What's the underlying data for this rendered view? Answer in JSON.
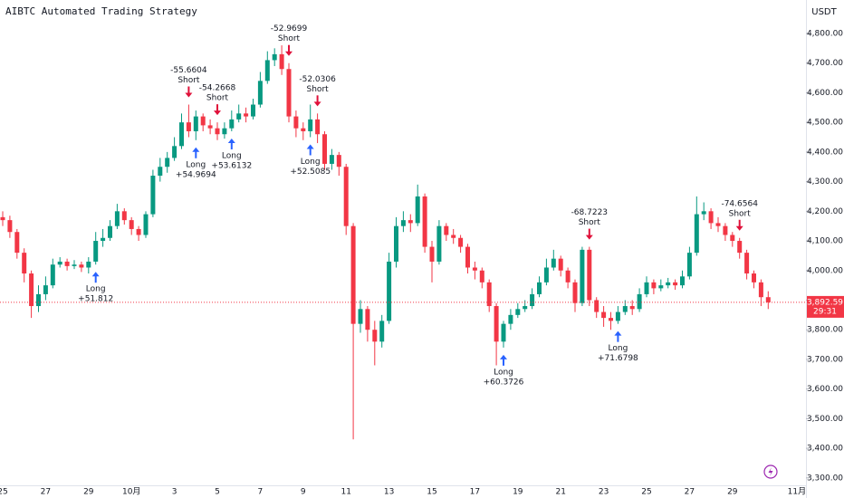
{
  "chart_data": {
    "type": "candlestick",
    "title": "AIBTC Automated Trading Strategy",
    "currency": "USDT",
    "categories": [
      "25",
      null,
      null,
      null,
      null,
      null,
      "27",
      null,
      null,
      null,
      null,
      null,
      "29",
      null,
      null,
      null,
      null,
      null,
      "10月",
      null,
      null,
      null,
      null,
      null,
      "3",
      null,
      null,
      null,
      null,
      null,
      "5",
      null,
      null,
      null,
      null,
      null,
      "7",
      null,
      null,
      null,
      null,
      null,
      "9",
      null,
      null,
      null,
      null,
      null,
      "11",
      null,
      null,
      null,
      null,
      null,
      "13",
      null,
      null,
      null,
      null,
      null,
      "15",
      null,
      null,
      null,
      null,
      null,
      "17",
      null,
      null,
      null,
      null,
      null,
      "19",
      null,
      null,
      null,
      null,
      null,
      "21",
      null,
      null,
      null,
      null,
      null,
      "23",
      null,
      null,
      null,
      null,
      null,
      "25",
      null,
      null,
      null,
      null,
      null,
      "27",
      null,
      null,
      null,
      null,
      null,
      "29",
      null,
      null,
      null,
      null,
      null,
      null,
      null,
      null,
      "11月"
    ],
    "open": [
      4180,
      4170,
      4130,
      4060,
      3990,
      3880,
      3920,
      3950,
      4020,
      4030,
      4015,
      4020,
      4010,
      4030,
      4100,
      4110,
      4150,
      4200,
      4170,
      4140,
      4120,
      4190,
      4320,
      4350,
      4380,
      4420,
      4500,
      4470,
      4520,
      4490,
      4480,
      4460,
      4480,
      4510,
      4530,
      4520,
      4560,
      4640,
      4710,
      4730,
      4680,
      4520,
      4480,
      4470,
      4510,
      4460,
      4360,
      4390,
      4350,
      4150,
      3820,
      3870,
      3800,
      3760,
      3830,
      4030,
      4150,
      4170,
      4160,
      4250,
      4080,
      4030,
      4150,
      4120,
      4110,
      4080,
      4010,
      4000,
      3960,
      3880,
      3760,
      3820,
      3850,
      3870,
      3880,
      3920,
      3960,
      4010,
      4040,
      4000,
      3960,
      3890,
      4070,
      3900,
      3860,
      3840,
      3830,
      3860,
      3880,
      3870,
      3920,
      3960,
      3940,
      3950,
      3960,
      3950,
      3980,
      4060,
      4190,
      4200,
      4160,
      4150,
      4120,
      4100,
      4060,
      3990,
      3960,
      3910,
      null,
      null,
      null,
      null
    ],
    "high": [
      4200,
      4185,
      4140,
      4075,
      4000,
      3950,
      3980,
      4040,
      4045,
      4040,
      4035,
      4030,
      4045,
      4130,
      4140,
      4170,
      4225,
      4210,
      4180,
      4150,
      4200,
      4340,
      4380,
      4400,
      4450,
      4530,
      4560,
      4540,
      4530,
      4510,
      4500,
      4500,
      4540,
      4560,
      4550,
      4580,
      4670,
      4740,
      4750,
      4760,
      4700,
      4540,
      4500,
      4560,
      4530,
      4470,
      4410,
      4400,
      4360,
      4160,
      3900,
      3880,
      3830,
      3850,
      4060,
      4180,
      4200,
      4190,
      4290,
      4260,
      4100,
      4170,
      4160,
      4140,
      4120,
      4090,
      4030,
      4010,
      3970,
      3890,
      3830,
      3870,
      3890,
      3900,
      3940,
      3980,
      4040,
      4070,
      4050,
      4010,
      3970,
      4080,
      4080,
      3910,
      3880,
      3860,
      3880,
      3900,
      3900,
      3940,
      3980,
      3970,
      3970,
      3975,
      3970,
      4000,
      4080,
      4250,
      4230,
      4210,
      4180,
      4160,
      4130,
      4110,
      4070,
      4000,
      3970,
      3930,
      null,
      null,
      null,
      null
    ],
    "low": [
      4150,
      4110,
      4040,
      3960,
      3840,
      3860,
      3900,
      3940,
      4010,
      4000,
      4005,
      3995,
      3990,
      4020,
      4080,
      4100,
      4140,
      4155,
      4120,
      4100,
      4110,
      4180,
      4300,
      4330,
      4370,
      4410,
      4450,
      4440,
      4470,
      4460,
      4440,
      4445,
      4470,
      4500,
      4500,
      4510,
      4550,
      4630,
      4690,
      4660,
      4500,
      4450,
      4440,
      4450,
      4430,
      4340,
      4340,
      4320,
      4120,
      3430,
      3790,
      3760,
      3680,
      3740,
      3820,
      4010,
      4130,
      4130,
      4150,
      4060,
      3960,
      4020,
      4100,
      4090,
      4060,
      3990,
      3970,
      3940,
      3860,
      3680,
      3740,
      3800,
      3840,
      3860,
      3870,
      3910,
      3950,
      4000,
      3980,
      3940,
      3860,
      3880,
      3880,
      3840,
      3810,
      3800,
      3820,
      3850,
      3850,
      3860,
      3910,
      3920,
      3930,
      3940,
      3935,
      3940,
      3970,
      4050,
      4170,
      4140,
      4130,
      4100,
      4080,
      4040,
      3970,
      3940,
      3880,
      3870,
      null,
      null,
      null,
      null
    ],
    "close": [
      4170,
      4130,
      4060,
      3990,
      3880,
      3920,
      3950,
      4020,
      4030,
      4015,
      4020,
      4010,
      4030,
      4100,
      4110,
      4150,
      4200,
      4170,
      4140,
      4120,
      4190,
      4320,
      4350,
      4380,
      4420,
      4500,
      4470,
      4520,
      4490,
      4480,
      4460,
      4480,
      4510,
      4530,
      4520,
      4560,
      4640,
      4710,
      4730,
      4680,
      4520,
      4480,
      4470,
      4510,
      4460,
      4360,
      4390,
      4350,
      4150,
      3820,
      3870,
      3800,
      3760,
      3830,
      4030,
      4150,
      4170,
      4160,
      4250,
      4080,
      4030,
      4150,
      4120,
      4110,
      4080,
      4010,
      4000,
      3960,
      3880,
      3760,
      3820,
      3850,
      3870,
      3880,
      3920,
      3960,
      4010,
      4040,
      4000,
      3960,
      3890,
      4070,
      3900,
      3860,
      3840,
      3830,
      3860,
      3880,
      3870,
      3920,
      3960,
      3940,
      3950,
      3960,
      3950,
      3980,
      4060,
      4190,
      4200,
      4160,
      4150,
      4120,
      4100,
      4060,
      3990,
      3960,
      3910,
      3892.59,
      null,
      null,
      null,
      null
    ],
    "up_color": "#089981",
    "down_color": "#f23645",
    "ylim": [
      3275,
      4913
    ],
    "yticks": [
      {
        "value": 3300,
        "label": "3,300.00"
      },
      {
        "value": 3400,
        "label": "3,400.00"
      },
      {
        "value": 3500,
        "label": "3,500.00"
      },
      {
        "value": 3600,
        "label": "3,600.00"
      },
      {
        "value": 3700,
        "label": "3,700.00"
      },
      {
        "value": 3800,
        "label": "3,800.00"
      },
      {
        "value": 3900,
        "label": "3,900.00"
      },
      {
        "value": 4000,
        "label": "4,000.00"
      },
      {
        "value": 4100,
        "label": "4,100.00"
      },
      {
        "value": 4200,
        "label": "4,200.00"
      },
      {
        "value": 4300,
        "label": "4,300.00"
      },
      {
        "value": 4400,
        "label": "4,400.00"
      },
      {
        "value": 4500,
        "label": "4,500.00"
      },
      {
        "value": 4600,
        "label": "4,600.00"
      },
      {
        "value": 4700,
        "label": "4,700.00"
      },
      {
        "value": 4800,
        "label": "4,800.00"
      }
    ],
    "last_price": 3892.59,
    "last_price_label": "3,892.59",
    "countdown": "29:31",
    "signals": [
      {
        "side": "Long",
        "pnl": "+51.812",
        "bar": 13
      },
      {
        "side": "Short",
        "pnl": "-55.6604",
        "bar": 26
      },
      {
        "side": "Long",
        "pnl": "+54.9694",
        "bar": 27
      },
      {
        "side": "Short",
        "pnl": "-54.2668",
        "bar": 30
      },
      {
        "side": "Long",
        "pnl": "+53.6132",
        "bar": 32
      },
      {
        "side": "Short",
        "pnl": "-52.9699",
        "bar": 40
      },
      {
        "side": "Long",
        "pnl": "+52.5085",
        "bar": 43
      },
      {
        "side": "Short",
        "pnl": "-52.0306",
        "bar": 44
      },
      {
        "side": "Long",
        "pnl": "+60.3726",
        "bar": 70
      },
      {
        "side": "Short",
        "pnl": "-68.7223",
        "bar": 82
      },
      {
        "side": "Long",
        "pnl": "+71.6798",
        "bar": 86
      },
      {
        "side": "Short",
        "pnl": "-74.6564",
        "bar": 103
      }
    ]
  }
}
